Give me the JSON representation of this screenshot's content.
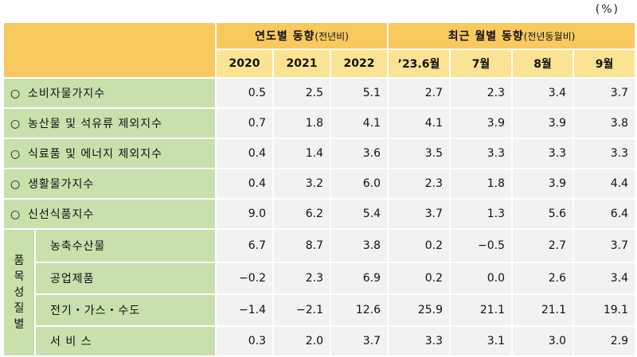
{
  "unit": "(%)",
  "header": {
    "group_annual": "연도별 동향",
    "group_annual_sub": "(전년비)",
    "group_monthly": "최근 월별 동향",
    "group_monthly_sub": "(전년동월비)",
    "columns": [
      "2020",
      "2021",
      "2022",
      "’23.6월",
      "7월",
      "8월",
      "9월"
    ]
  },
  "rows": [
    {
      "label": "소비자물가지수",
      "values": [
        "0.5",
        "2.5",
        "5.1",
        "2.7",
        "2.3",
        "3.4",
        "3.7"
      ]
    },
    {
      "label": "농산물 및 석유류 제외지수",
      "values": [
        "0.7",
        "1.8",
        "4.1",
        "4.1",
        "3.9",
        "3.9",
        "3.8"
      ]
    },
    {
      "label": "식료품 및 에너지 제외지수",
      "values": [
        "0.4",
        "1.4",
        "3.6",
        "3.5",
        "3.3",
        "3.3",
        "3.3"
      ]
    },
    {
      "label": "생활물가지수",
      "values": [
        "0.4",
        "3.2",
        "6.0",
        "2.3",
        "1.8",
        "3.9",
        "4.4"
      ]
    },
    {
      "label": "신선식품지수",
      "values": [
        "9.0",
        "6.2",
        "5.4",
        "3.7",
        "1.3",
        "5.6",
        "6.4"
      ]
    }
  ],
  "bullet": "○",
  "group": {
    "label_chars": [
      "품",
      "목",
      "성",
      "질",
      "별"
    ],
    "rows": [
      {
        "label": "농축수산물",
        "values": [
          "6.7",
          "8.7",
          "3.8",
          "0.2",
          "−0.5",
          "2.7",
          "3.7"
        ]
      },
      {
        "label": "공업제품",
        "values": [
          "−0.2",
          "2.3",
          "6.9",
          "0.2",
          "0.0",
          "2.6",
          "3.4"
        ]
      },
      {
        "label": "전기・가스・수도",
        "values": [
          "−1.4",
          "−2.1",
          "12.6",
          "25.9",
          "21.1",
          "21.1",
          "19.1"
        ]
      },
      {
        "label": "서 비 스",
        "values": [
          "0.3",
          "2.0",
          "3.7",
          "3.3",
          "3.1",
          "3.0",
          "2.9"
        ]
      }
    ]
  }
}
